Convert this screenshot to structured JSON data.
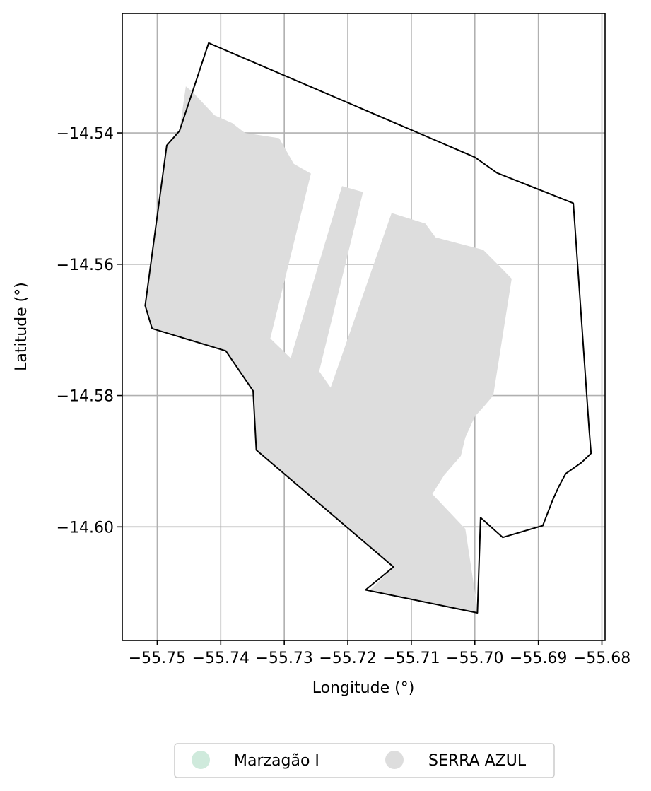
{
  "chart_data": {
    "type": "map",
    "xlabel": "Longitude (°)",
    "ylabel": "Latitude (°)",
    "xlim": [
      -55.7555,
      -55.6795
    ],
    "ylim": [
      -14.6173,
      -14.5218
    ],
    "grid": true,
    "x_ticks": [
      {
        "value": -55.75,
        "label": "−55.75"
      },
      {
        "value": -55.74,
        "label": "−55.74"
      },
      {
        "value": -55.73,
        "label": "−55.73"
      },
      {
        "value": -55.72,
        "label": "−55.72"
      },
      {
        "value": -55.71,
        "label": "−55.71"
      },
      {
        "value": -55.7,
        "label": "−55.70"
      },
      {
        "value": -55.69,
        "label": "−55.69"
      },
      {
        "value": -55.68,
        "label": "−55.68"
      }
    ],
    "y_ticks": [
      {
        "value": -14.54,
        "label": "−14.54"
      },
      {
        "value": -14.56,
        "label": "−14.56"
      },
      {
        "value": -14.58,
        "label": "−14.58"
      },
      {
        "value": -14.6,
        "label": "−14.60"
      }
    ],
    "legend_placement": "bottom-center",
    "layers": [
      {
        "name": "Marzagão I",
        "color": "#cfeadc",
        "style": "outline",
        "stroke": "#000000",
        "polygon": [
          [
            -55.7419,
            -14.5263
          ],
          [
            -55.7,
            -14.5437
          ],
          [
            -55.6965,
            -14.5461
          ],
          [
            -55.6845,
            -14.5507
          ],
          [
            -55.682,
            -14.5852
          ],
          [
            -55.6817,
            -14.5888
          ],
          [
            -55.6832,
            -14.5902
          ],
          [
            -55.6857,
            -14.5919
          ],
          [
            -55.6867,
            -14.5937
          ],
          [
            -55.6877,
            -14.5958
          ],
          [
            -55.6893,
            -14.5998
          ],
          [
            -55.6956,
            -14.6016
          ],
          [
            -55.6991,
            -14.5986
          ],
          [
            -55.6996,
            -14.6131
          ],
          [
            -55.7172,
            -14.6096
          ],
          [
            -55.7128,
            -14.6061
          ],
          [
            -55.7344,
            -14.5883
          ],
          [
            -55.7349,
            -14.5793
          ],
          [
            -55.7392,
            -14.5732
          ],
          [
            -55.7508,
            -14.5698
          ],
          [
            -55.7519,
            -14.5663
          ],
          [
            -55.7485,
            -14.5419
          ],
          [
            -55.7465,
            -14.5397
          ]
        ]
      },
      {
        "name": "SERRA AZUL",
        "color": "#dddddd",
        "style": "fill",
        "polygon": [
          [
            -55.7455,
            -14.5329
          ],
          [
            -55.7445,
            -14.5337
          ],
          [
            -55.741,
            -14.5373
          ],
          [
            -55.7382,
            -14.5385
          ],
          [
            -55.7362,
            -14.54
          ],
          [
            -55.7308,
            -14.5408
          ],
          [
            -55.7285,
            -14.5447
          ],
          [
            -55.7258,
            -14.5462
          ],
          [
            -55.7322,
            -14.5713
          ],
          [
            -55.729,
            -14.5743
          ],
          [
            -55.7209,
            -14.5481
          ],
          [
            -55.7176,
            -14.549
          ],
          [
            -55.7245,
            -14.5763
          ],
          [
            -55.7227,
            -14.5788
          ],
          [
            -55.7131,
            -14.5522
          ],
          [
            -55.7078,
            -14.5538
          ],
          [
            -55.7062,
            -14.5559
          ],
          [
            -55.7023,
            -14.5569
          ],
          [
            -55.6987,
            -14.5578
          ],
          [
            -55.6962,
            -14.5602
          ],
          [
            -55.6942,
            -14.5622
          ],
          [
            -55.6971,
            -14.58
          ],
          [
            -55.6985,
            -14.5816
          ],
          [
            -55.7,
            -14.5832
          ],
          [
            -55.7015,
            -14.5864
          ],
          [
            -55.7022,
            -14.5892
          ],
          [
            -55.7048,
            -14.5921
          ],
          [
            -55.7067,
            -14.595
          ],
          [
            -55.7015,
            -14.6003
          ],
          [
            -55.6995,
            -14.6131
          ],
          [
            -55.7165,
            -14.6096
          ],
          [
            -55.7128,
            -14.6061
          ],
          [
            -55.7344,
            -14.5883
          ],
          [
            -55.7349,
            -14.5793
          ],
          [
            -55.7392,
            -14.5732
          ],
          [
            -55.7508,
            -14.5698
          ],
          [
            -55.7519,
            -14.5663
          ],
          [
            -55.7485,
            -14.5419
          ],
          [
            -55.7465,
            -14.5397
          ]
        ]
      }
    ]
  }
}
